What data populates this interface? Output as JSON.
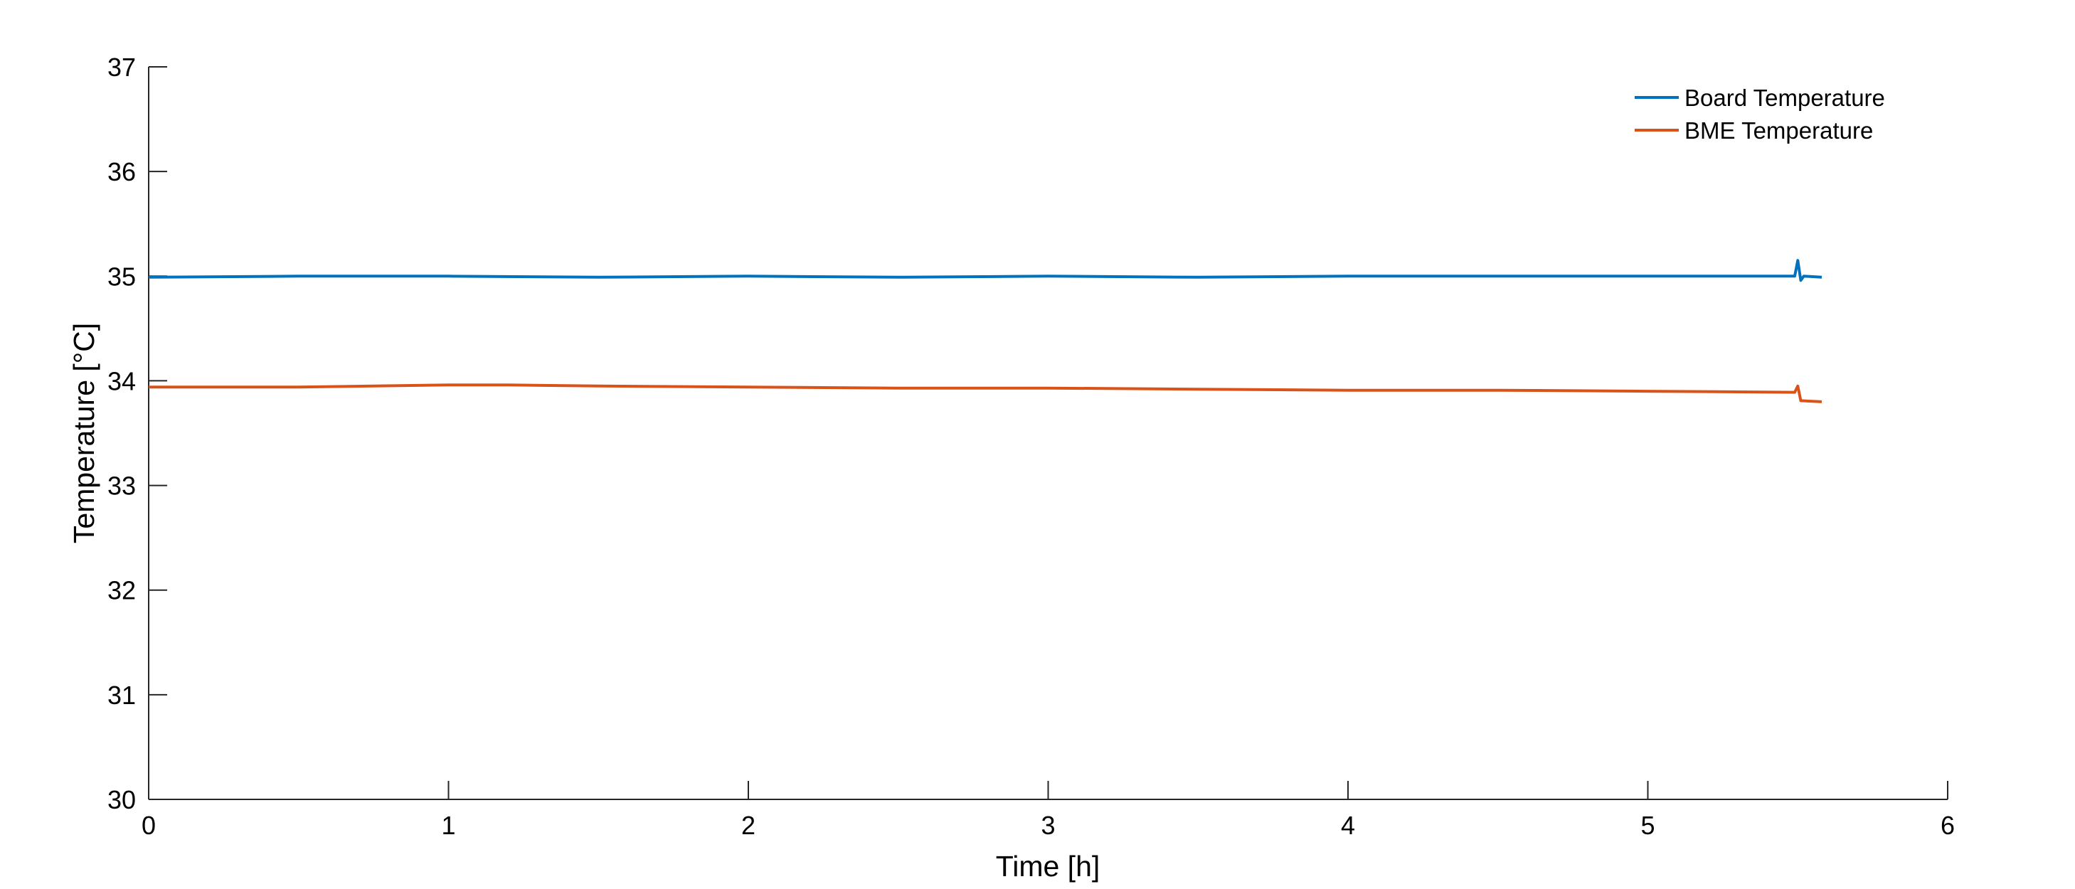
{
  "chart_data": {
    "type": "line",
    "xlabel": "Time [h]",
    "ylabel": "Temperature [°C]",
    "xlim": [
      0,
      6
    ],
    "ylim": [
      30,
      37
    ],
    "xticks": [
      0,
      1,
      2,
      3,
      4,
      5,
      6
    ],
    "yticks": [
      30,
      31,
      32,
      33,
      34,
      35,
      36,
      37
    ],
    "grid": false,
    "legend_position": "top-right",
    "series": [
      {
        "name": "Board Temperature",
        "color": "#0072BD",
        "x": [
          0,
          0.5,
          1,
          1.5,
          2,
          2.5,
          3,
          3.5,
          4,
          4.5,
          5,
          5.49,
          5.5,
          5.51,
          5.52,
          5.58
        ],
        "y": [
          34.99,
          35.0,
          35.0,
          34.99,
          35.0,
          34.99,
          35.0,
          34.99,
          35.0,
          35.0,
          35.0,
          35.0,
          35.15,
          34.96,
          35.0,
          34.99
        ]
      },
      {
        "name": "BME Temperature",
        "color": "#D95319",
        "x": [
          0,
          0.5,
          1,
          1.2,
          1.5,
          2,
          2.5,
          3,
          3.5,
          4,
          4.5,
          5,
          5.49,
          5.5,
          5.51,
          5.58
        ],
        "y": [
          33.94,
          33.94,
          33.96,
          33.96,
          33.95,
          33.94,
          33.93,
          33.93,
          33.92,
          33.91,
          33.91,
          33.9,
          33.89,
          33.95,
          33.81,
          33.8
        ]
      }
    ]
  }
}
